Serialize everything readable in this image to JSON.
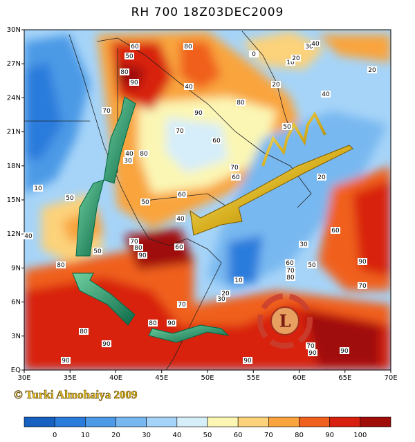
{
  "title": "RH 700 18Z03DEC2009",
  "map": {
    "lat_ticks": [
      "EQ",
      "3N",
      "6N",
      "9N",
      "12N",
      "15N",
      "18N",
      "21N",
      "24N",
      "27N",
      "30N"
    ],
    "lon_ticks": [
      "30E",
      "35E",
      "40E",
      "45E",
      "50E",
      "55E",
      "60E",
      "65E",
      "70E"
    ]
  },
  "low_symbol": "L",
  "credit": "© Turki Almohaiya 2009",
  "colorbar": {
    "colors": [
      "#1560c0",
      "#2a7cdc",
      "#4c9ae6",
      "#78b8f0",
      "#a6d4f8",
      "#d6eefa",
      "#fbf6b4",
      "#fcd27a",
      "#f9a43e",
      "#f0601e",
      "#d8200e",
      "#a00c08"
    ],
    "ticks": [
      0,
      10,
      20,
      30,
      40,
      50,
      60,
      70,
      80,
      90,
      100
    ]
  },
  "contour_labels": [
    60,
    50,
    80,
    0,
    10,
    20,
    30,
    40,
    20,
    80,
    90,
    40,
    90,
    80,
    20,
    40,
    70,
    70,
    60,
    50,
    40,
    80,
    30,
    70,
    60,
    20,
    10,
    50,
    60,
    50,
    40,
    60,
    40,
    70,
    80,
    60,
    90,
    50,
    30,
    50,
    90,
    80,
    60,
    70,
    80,
    10,
    20,
    30,
    70,
    70,
    80,
    90,
    80,
    90,
    70,
    90,
    90,
    90,
    90
  ]
}
